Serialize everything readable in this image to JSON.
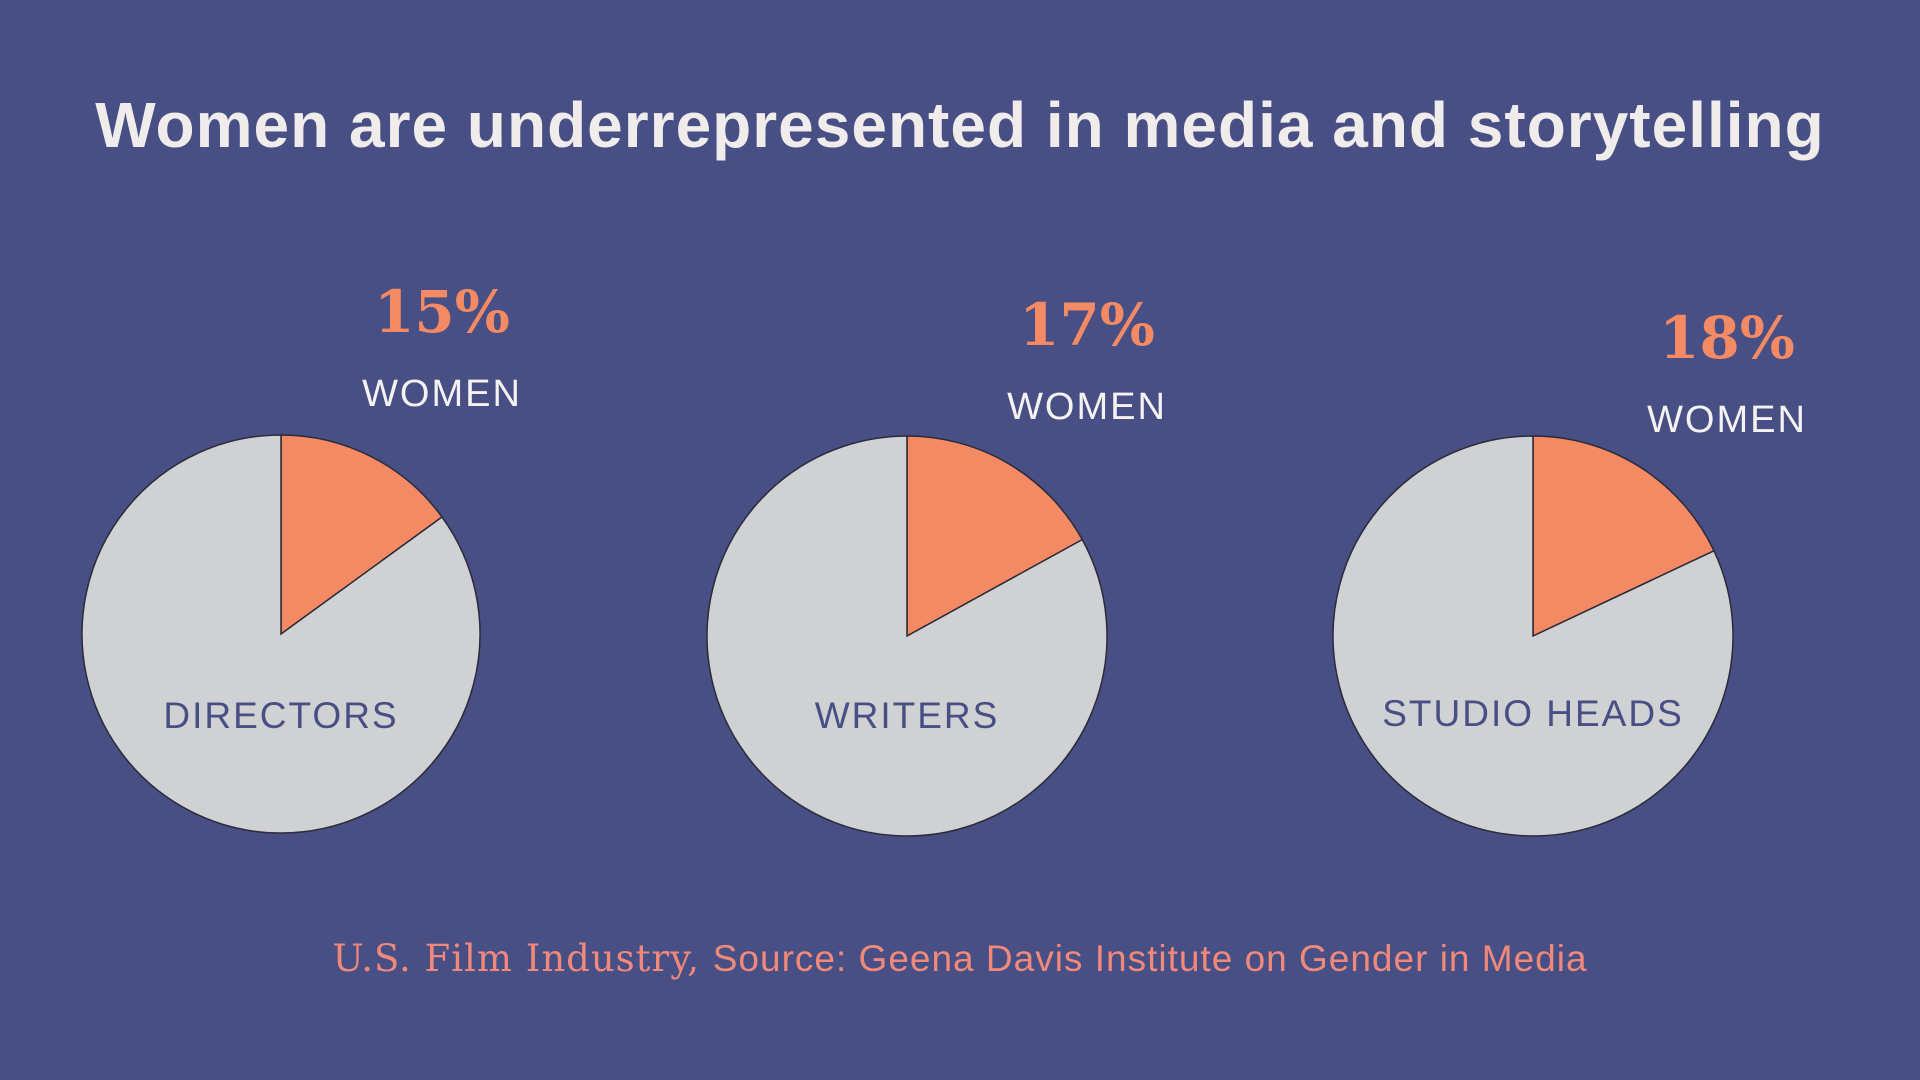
{
  "title": "Women are underrepresented in media and storytelling",
  "chart_data": [
    {
      "type": "pie",
      "category": "DIRECTORS",
      "slices": [
        {
          "label": "WOMEN",
          "value": 15,
          "color": "#f48a64"
        },
        {
          "label": "",
          "value": 85,
          "color": "#d0d1d3"
        }
      ],
      "value_label": "15%",
      "series_label": "WOMEN"
    },
    {
      "type": "pie",
      "category": "WRITERS",
      "slices": [
        {
          "label": "WOMEN",
          "value": 17,
          "color": "#f48a64"
        },
        {
          "label": "",
          "value": 83,
          "color": "#d0d1d3"
        }
      ],
      "value_label": "17%",
      "series_label": "WOMEN"
    },
    {
      "type": "pie",
      "category": "STUDIO HEADS",
      "slices": [
        {
          "label": "WOMEN",
          "value": 18,
          "color": "#f48a64"
        },
        {
          "label": "",
          "value": 82,
          "color": "#d0d1d3"
        }
      ],
      "value_label": "18%",
      "series_label": "WOMEN"
    }
  ],
  "source": {
    "prefix": "U.S. Film Industry, ",
    "text": "Source: Geena Davis Institute on Gender in Media"
  },
  "colors": {
    "background": "#474f85",
    "accent": "#f48a64",
    "pie_rest": "#d0d1d3",
    "source": "#f0897a"
  }
}
